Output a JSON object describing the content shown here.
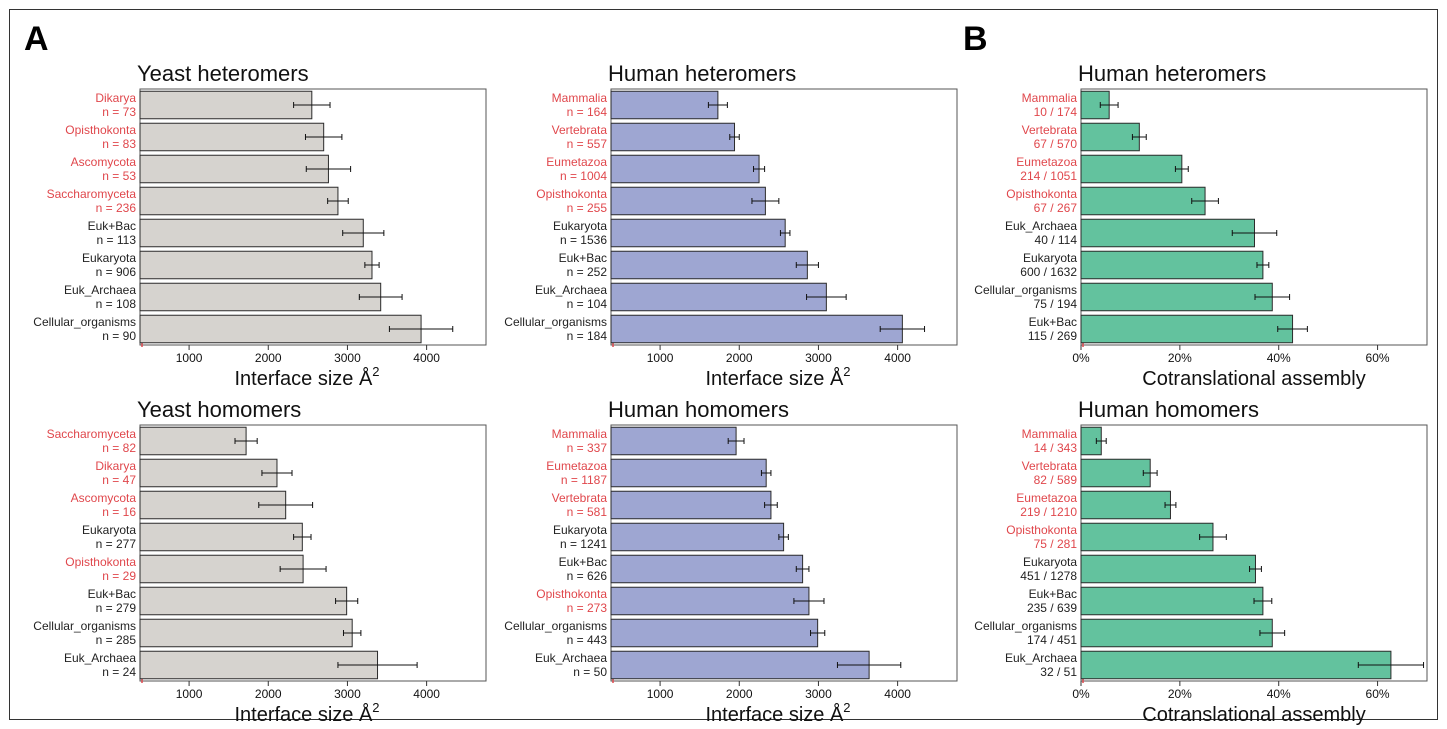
{
  "panel_letters": [
    "A",
    "B"
  ],
  "colors": {
    "yeast_bar": "#d6d3cf",
    "human_bar": "#9ea6d2",
    "cotrans_bar": "#63c29e",
    "highlight_label": "#e0474c",
    "normal_label": "#222222",
    "bar_edge": "#2b2b2b"
  },
  "chart_data": [
    {
      "type": "bar",
      "orientation": "horizontal",
      "title": "Yeast heteromers",
      "xlabel": "Interface size Å",
      "xlabel_sup": "2",
      "xlim": [
        380,
        4750
      ],
      "xticks": [
        1000,
        2000,
        3000,
        4000
      ],
      "tick_format": "number",
      "color": "#d6d3cf",
      "categories": [
        "Dikarya",
        "Opisthokonta",
        "Ascomycota",
        "Saccharomyceta",
        "Euk+Bac",
        "Eukaryota",
        "Euk_Archaea",
        "Cellular_organisms"
      ],
      "counts": [
        "n = 73",
        "n = 83",
        "n = 53",
        "n = 236",
        "n = 113",
        "n = 906",
        "n = 108",
        "n = 90"
      ],
      "highlight": [
        true,
        true,
        true,
        true,
        false,
        false,
        false,
        false
      ],
      "values": [
        2550,
        2700,
        2760,
        2880,
        3200,
        3310,
        3420,
        3930
      ],
      "err": [
        230,
        230,
        280,
        130,
        260,
        90,
        270,
        400
      ]
    },
    {
      "type": "bar",
      "orientation": "horizontal",
      "title": "Human heteromers",
      "xlabel": "Interface size Å",
      "xlabel_sup": "2",
      "xlim": [
        380,
        4750
      ],
      "xticks": [
        1000,
        2000,
        3000,
        4000
      ],
      "tick_format": "number",
      "color": "#9ea6d2",
      "categories": [
        "Mammalia",
        "Vertebrata",
        "Eumetazoa",
        "Opisthokonta",
        "Eukaryota",
        "Euk+Bac",
        "Euk_Archaea",
        "Cellular_organisms"
      ],
      "counts": [
        "n = 164",
        "n = 557",
        "n = 1004",
        "n = 255",
        "n = 1536",
        "n = 252",
        "n = 104",
        "n = 184"
      ],
      "highlight": [
        true,
        true,
        true,
        true,
        false,
        false,
        false,
        false
      ],
      "values": [
        1730,
        1940,
        2250,
        2330,
        2580,
        2860,
        3100,
        4060
      ],
      "err": [
        120,
        60,
        70,
        170,
        60,
        140,
        250,
        280
      ]
    },
    {
      "type": "bar",
      "orientation": "horizontal",
      "title": "Human heteromers",
      "xlabel": "Cotranslational assembly",
      "xlim": [
        0,
        0.7
      ],
      "xticks": [
        0,
        0.2,
        0.4,
        0.6
      ],
      "xticklabels": [
        "0%",
        "20%",
        "40%",
        "60%"
      ],
      "tick_format": "percent",
      "color": "#63c29e",
      "categories": [
        "Mammalia",
        "Vertebrata",
        "Eumetazoa",
        "Opisthokonta",
        "Euk_Archaea",
        "Eukaryota",
        "Cellular_organisms",
        "Euk+Bac"
      ],
      "counts": [
        "10 / 174",
        "67 / 570",
        "214 / 1051",
        "67 / 267",
        "40 / 114",
        "600 / 1632",
        "75 / 194",
        "115 / 269"
      ],
      "highlight": [
        true,
        true,
        true,
        true,
        false,
        false,
        false,
        false
      ],
      "values": [
        0.057,
        0.118,
        0.204,
        0.251,
        0.351,
        0.368,
        0.387,
        0.428
      ],
      "err": [
        0.018,
        0.014,
        0.013,
        0.027,
        0.045,
        0.012,
        0.035,
        0.03
      ]
    },
    {
      "type": "bar",
      "orientation": "horizontal",
      "title": "Yeast homomers",
      "xlabel": "Interface size Å",
      "xlabel_sup": "2",
      "xlim": [
        380,
        4750
      ],
      "xticks": [
        1000,
        2000,
        3000,
        4000
      ],
      "tick_format": "number",
      "color": "#d6d3cf",
      "categories": [
        "Saccharomyceta",
        "Dikarya",
        "Ascomycota",
        "Eukaryota",
        "Opisthokonta",
        "Euk+Bac",
        "Cellular_organisms",
        "Euk_Archaea"
      ],
      "counts": [
        "n = 82",
        "n = 47",
        "n = 16",
        "n = 277",
        "n = 29",
        "n = 279",
        "n = 285",
        "n = 24"
      ],
      "highlight": [
        true,
        true,
        true,
        false,
        true,
        false,
        false,
        false
      ],
      "values": [
        1720,
        2110,
        2220,
        2430,
        2440,
        2990,
        3060,
        3380
      ],
      "err": [
        140,
        190,
        340,
        110,
        290,
        140,
        110,
        500
      ]
    },
    {
      "type": "bar",
      "orientation": "horizontal",
      "title": "Human homomers",
      "xlabel": "Interface size Å",
      "xlabel_sup": "2",
      "xlim": [
        380,
        4750
      ],
      "xticks": [
        1000,
        2000,
        3000,
        4000
      ],
      "tick_format": "number",
      "color": "#9ea6d2",
      "categories": [
        "Mammalia",
        "Eumetazoa",
        "Vertebrata",
        "Eukaryota",
        "Euk+Bac",
        "Opisthokonta",
        "Cellular_organisms",
        "Euk_Archaea"
      ],
      "counts": [
        "n = 337",
        "n = 1187",
        "n = 581",
        "n = 1241",
        "n = 626",
        "n = 273",
        "n = 443",
        "n = 50"
      ],
      "highlight": [
        true,
        true,
        true,
        false,
        false,
        true,
        false,
        false
      ],
      "values": [
        1960,
        2340,
        2400,
        2560,
        2800,
        2880,
        2990,
        3640
      ],
      "err": [
        100,
        60,
        80,
        60,
        80,
        190,
        90,
        400
      ]
    },
    {
      "type": "bar",
      "orientation": "horizontal",
      "title": "Human homomers",
      "xlabel": "Cotranslational assembly",
      "xlim": [
        0,
        0.7
      ],
      "xticks": [
        0,
        0.2,
        0.4,
        0.6
      ],
      "xticklabels": [
        "0%",
        "20%",
        "40%",
        "60%"
      ],
      "tick_format": "percent",
      "color": "#63c29e",
      "categories": [
        "Mammalia",
        "Vertebrata",
        "Eumetazoa",
        "Opisthokonta",
        "Eukaryota",
        "Euk+Bac",
        "Cellular_organisms",
        "Euk_Archaea"
      ],
      "counts": [
        "14 / 343",
        "82 / 589",
        "219 / 1210",
        "75 / 281",
        "451 / 1278",
        "235 / 639",
        "174 / 451",
        "32 / 51"
      ],
      "highlight": [
        true,
        true,
        true,
        true,
        false,
        false,
        false,
        false
      ],
      "values": [
        0.041,
        0.14,
        0.181,
        0.267,
        0.353,
        0.368,
        0.387,
        0.627
      ],
      "err": [
        0.01,
        0.014,
        0.011,
        0.027,
        0.012,
        0.018,
        0.025,
        0.066
      ]
    }
  ]
}
